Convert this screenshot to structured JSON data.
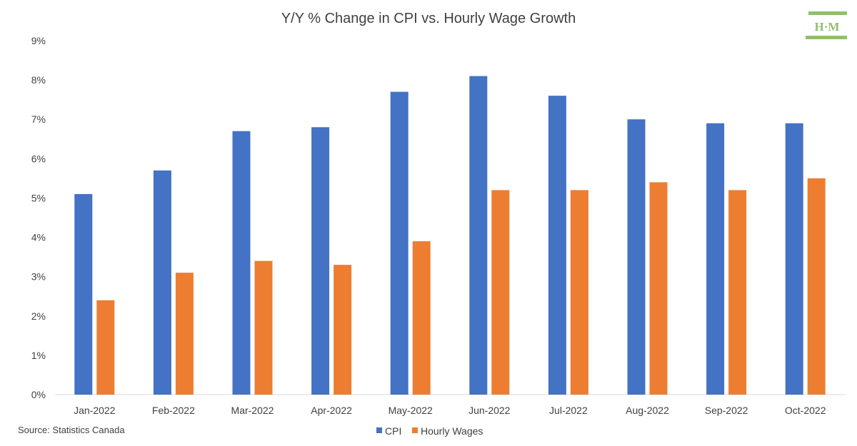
{
  "chart_data": {
    "type": "bar",
    "title": "Y/Y % Change in CPI vs. Hourly Wage Growth",
    "categories": [
      "Jan-2022",
      "Feb-2022",
      "Mar-2022",
      "Apr-2022",
      "May-2022",
      "Jun-2022",
      "Jul-2022",
      "Aug-2022",
      "Sep-2022",
      "Oct-2022"
    ],
    "series": [
      {
        "name": "CPI",
        "color": "#4472C4",
        "values": [
          5.1,
          5.7,
          6.7,
          6.8,
          7.7,
          8.1,
          7.6,
          7.0,
          6.9,
          6.9
        ]
      },
      {
        "name": "Hourly Wages",
        "color": "#ED7D31",
        "values": [
          2.4,
          3.1,
          3.4,
          3.3,
          3.9,
          5.2,
          5.2,
          5.4,
          5.2,
          5.5
        ]
      }
    ],
    "ylim": [
      0,
      9
    ],
    "yticks": [
      "0%",
      "1%",
      "2%",
      "3%",
      "4%",
      "5%",
      "6%",
      "7%",
      "8%",
      "9%"
    ],
    "grid": false,
    "legend_position": "bottom",
    "source": "Source: Statistics Canada",
    "logo": {
      "text": "H·M",
      "icon": "pillar-logo"
    }
  }
}
